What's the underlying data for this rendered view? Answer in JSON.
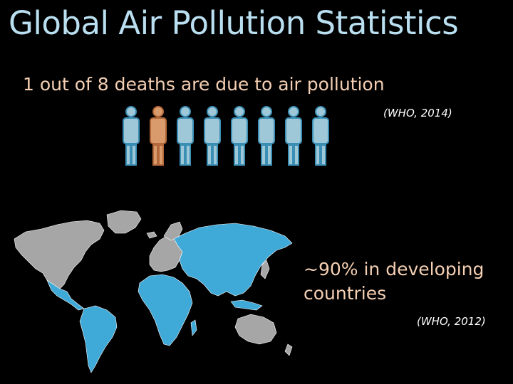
{
  "slide": {
    "title": "Global Air Pollution Statistics",
    "stat_deaths": "1 out of 8 deaths are due to air pollution",
    "citation_deaths": "(WHO, 2014)",
    "stat_developing": "~90% in developing countries",
    "citation_developing": "(WHO, 2012)"
  },
  "pictogram": {
    "total": 8,
    "highlighted": 1,
    "highlight_index": 1,
    "person_color": "#9ec8d8",
    "person_stroke": "#3b8fb5",
    "highlight_color": "#d99a6c",
    "highlight_stroke": "#b4693a"
  },
  "map": {
    "developing_color": "#3fa9d8",
    "developed_color": "#a6a6a6"
  }
}
